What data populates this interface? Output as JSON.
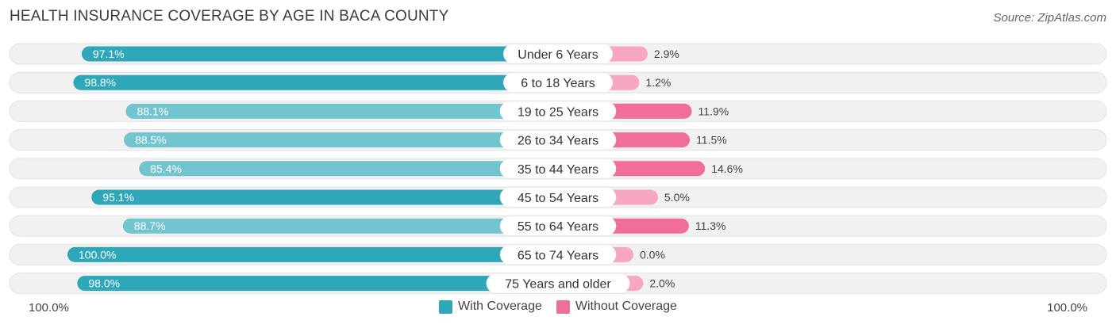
{
  "header": {
    "title": "HEALTH INSURANCE COVERAGE BY AGE IN BACA COUNTY",
    "source": "Source: ZipAtlas.com"
  },
  "footer": {
    "left_label": "100.0%",
    "right_label": "100.0%"
  },
  "legend": {
    "with_label": "With Coverage",
    "without_label": "Without Coverage"
  },
  "colors": {
    "with_strong": "#2ea7b9",
    "with_light": "#72c5cf",
    "without_strong": "#f06e98",
    "without_light": "#f7a7c0",
    "track": "#f1f1f1"
  },
  "chart_data": {
    "type": "bar",
    "title": "HEALTH INSURANCE COVERAGE BY AGE IN BACA COUNTY",
    "orientation": "diverging-horizontal",
    "categories": [
      "Under 6 Years",
      "6 to 18 Years",
      "19 to 25 Years",
      "26 to 34 Years",
      "35 to 44 Years",
      "45 to 54 Years",
      "55 to 64 Years",
      "65 to 74 Years",
      "75 Years and older"
    ],
    "series": [
      {
        "name": "With Coverage",
        "values": [
          97.1,
          98.8,
          88.1,
          88.5,
          85.4,
          95.1,
          88.7,
          100.0,
          98.0
        ],
        "labels": [
          "97.1%",
          "98.8%",
          "88.1%",
          "88.5%",
          "85.4%",
          "95.1%",
          "88.7%",
          "100.0%",
          "98.0%"
        ]
      },
      {
        "name": "Without Coverage",
        "values": [
          2.9,
          1.2,
          11.9,
          11.5,
          14.6,
          5.0,
          11.3,
          0.0,
          2.0
        ],
        "labels": [
          "2.9%",
          "1.2%",
          "11.9%",
          "11.5%",
          "14.6%",
          "5.0%",
          "11.3%",
          "0.0%",
          "2.0%"
        ]
      }
    ],
    "xlim": [
      0,
      100
    ],
    "legend": "bottom-center"
  }
}
